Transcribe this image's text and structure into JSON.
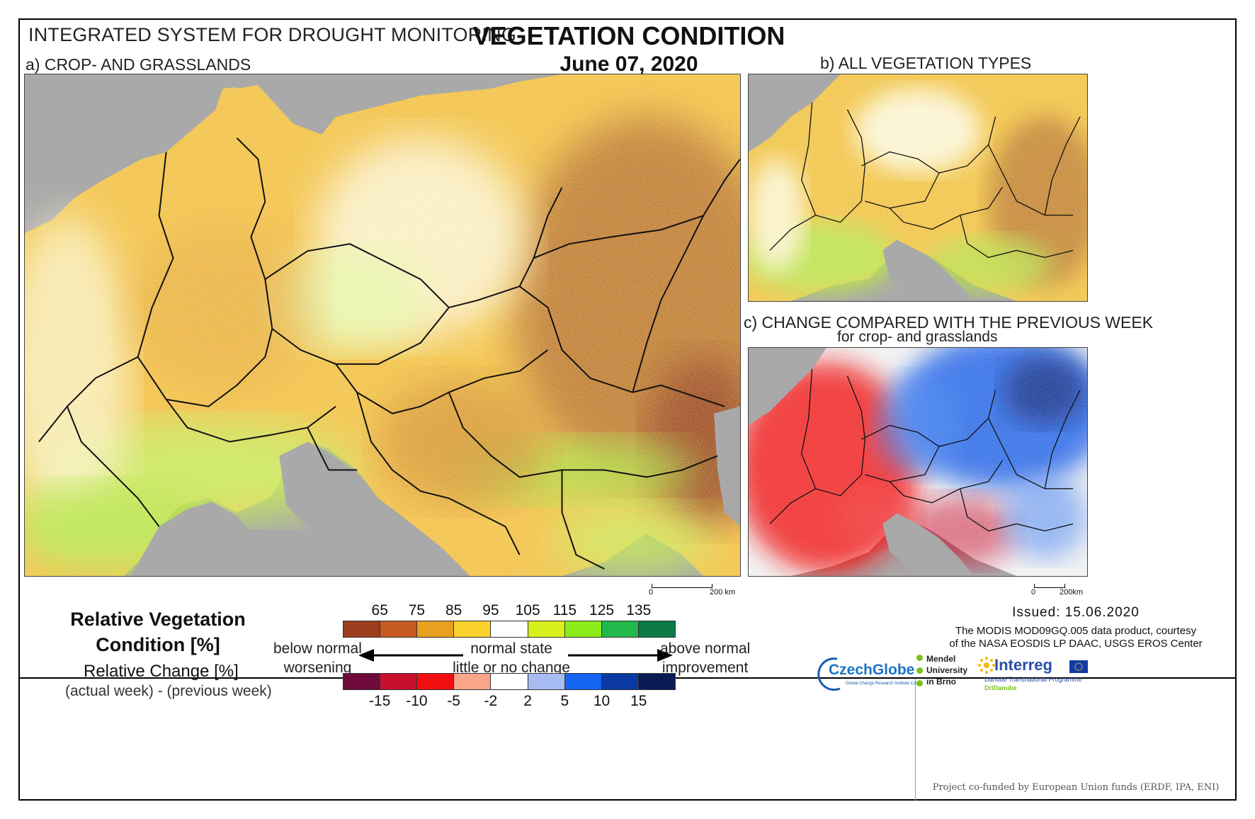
{
  "header": {
    "system": "INTEGRATED SYSTEM FOR DROUGHT MONITORING",
    "title": "VEGETATION CONDITION",
    "date": "June 07, 2020"
  },
  "panels": {
    "a": {
      "label": "a) CROP- AND GRASSLANDS",
      "scale_left": "0",
      "scale_right": "200 km"
    },
    "b": {
      "label": "b) ALL VEGETATION TYPES"
    },
    "c": {
      "label": "c) CHANGE COMPARED WITH THE PREVIOUS WEEK",
      "sublabel": "for crop- and grasslands",
      "scale_left": "0",
      "scale_right": "200km"
    }
  },
  "legend": {
    "title_line1": "Relative Vegetation",
    "title_line2": "Condition [%]",
    "change_title": "Relative Change [%]",
    "change_formula": "(actual week) - (previous week)",
    "condition_ticks": [
      "65",
      "75",
      "85",
      "95",
      "105",
      "115",
      "125",
      "135"
    ],
    "condition_colors": [
      "#9c3d1e",
      "#c65a22",
      "#e8a01f",
      "#f9d22e",
      "#ffffff",
      "#d6f01c",
      "#8ceb1a",
      "#22b84a",
      "#0b7a47"
    ],
    "change_ticks": [
      "-15",
      "-10",
      "-5",
      "-2",
      "2",
      "5",
      "10",
      "15"
    ],
    "change_colors": [
      "#6e0a3c",
      "#c8102e",
      "#f00e0e",
      "#f9a58a",
      "#ffffff",
      "#a6bcf2",
      "#1464f2",
      "#0b3aa5",
      "#0a1a55"
    ],
    "below_line1": "below normal",
    "below_line2": "worsening",
    "normal_line1": "normal state",
    "normal_line2": "little or no change",
    "above_line1": "above normal",
    "above_line2": "improvement"
  },
  "footer": {
    "issued": "Issued: 15.06.2020",
    "credit_line1": "The MODIS MOD09GQ.005 data product, courtesy",
    "credit_line2": "of the NASA EOSDIS LP DAAC, USGS EROS Center",
    "czechglobe": "CzechGlobe",
    "czechglobe_sub": "Global Change Research Institute CAS",
    "mendel_line1": "Mendel",
    "mendel_line2": "University",
    "mendel_line3": "in Brno",
    "interreg": "Interreg",
    "interreg_sub1": "Danube Transnational Programme",
    "interreg_sub2": "DriDanube",
    "cofund": "Project co-funded by European Union funds (ERDF, IPA, ENI)"
  },
  "colors": {
    "sea": "#a9a9a9",
    "border_lines": "#111111"
  }
}
